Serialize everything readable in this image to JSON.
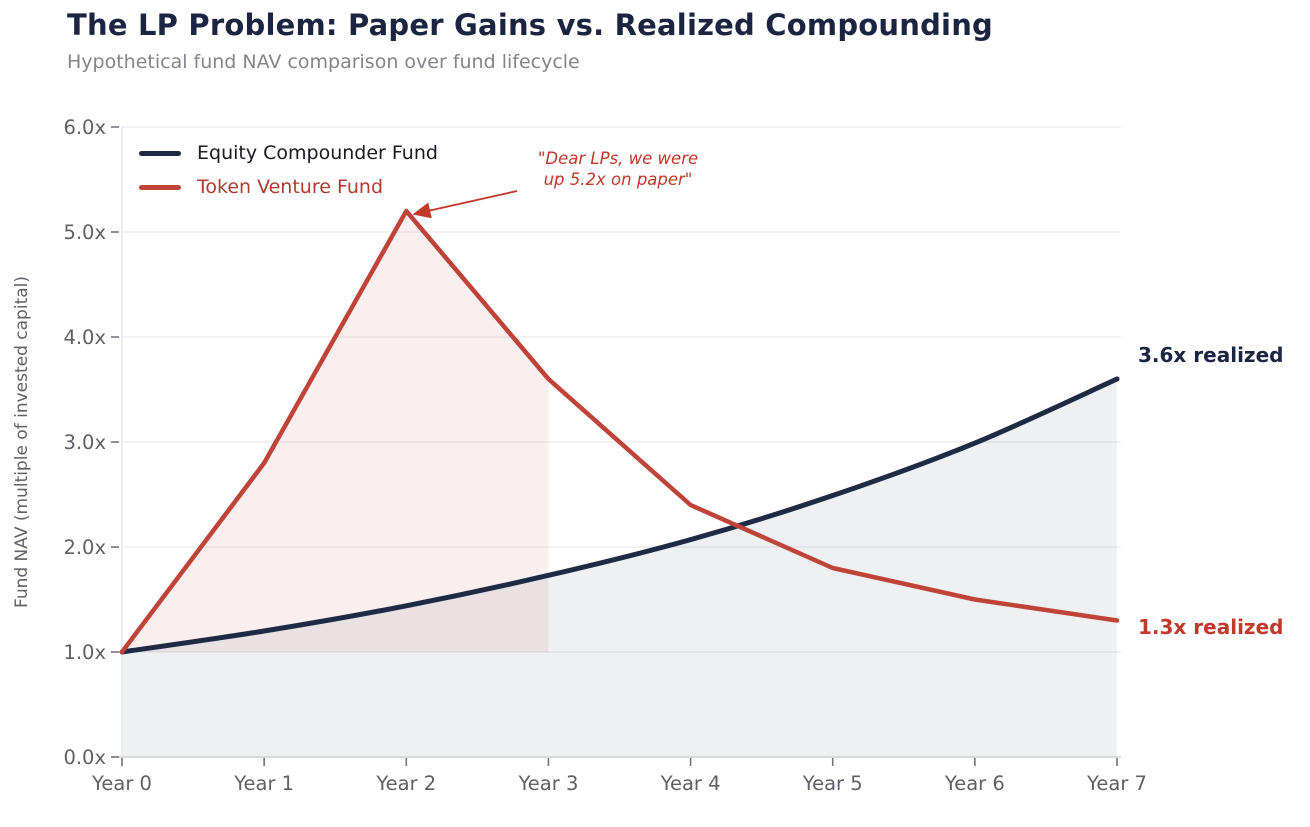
{
  "header": {
    "title": "The LP Problem: Paper Gains vs. Realized Compounding",
    "subtitle": "Hypothetical fund NAV comparison over fund lifecycle"
  },
  "chart_data": {
    "type": "line",
    "title": "The LP Problem: Paper Gains vs. Realized Compounding",
    "subtitle": "Hypothetical fund NAV comparison over fund lifecycle",
    "xlabel": "",
    "ylabel": "Fund NAV (multiple of invested capital)",
    "categories": [
      "Year 0",
      "Year 1",
      "Year 2",
      "Year 3",
      "Year 4",
      "Year 5",
      "Year 6",
      "Year 7"
    ],
    "yticks": [
      "0.0x",
      "1.0x",
      "2.0x",
      "3.0x",
      "4.0x",
      "5.0x",
      "6.0x"
    ],
    "ytick_values": [
      0,
      1,
      2,
      3,
      4,
      5,
      6
    ],
    "ylim": [
      0,
      6
    ],
    "grid": "horizontal",
    "legend_position": "upper-left-inside",
    "series": [
      {
        "name": "Equity Compounder Fund",
        "color": "#1f2a44",
        "label_color": "#1a1a24",
        "values": [
          1.0,
          1.2,
          1.44,
          1.73,
          2.07,
          2.49,
          2.99,
          3.6
        ],
        "smooth": true,
        "fill_baseline": 0.0,
        "fill_x_range": [
          0,
          7
        ],
        "fill_color": "rgba(100,115,135,0.11)"
      },
      {
        "name": "Token Venture Fund",
        "color": "#bf4338",
        "label_color": "#b03a32",
        "values": [
          1.0,
          2.8,
          5.2,
          3.6,
          2.4,
          1.8,
          1.5,
          1.3
        ],
        "smooth": false,
        "fill_baseline": 1.0,
        "fill_x_range": [
          0,
          3
        ],
        "fill_color": "rgba(192,57,43,0.08)"
      }
    ],
    "annotation": {
      "line1": "\"Dear LPs, we were",
      "line2": "up 5.2x on paper\"",
      "color": "#c0392b",
      "points_to": {
        "x": 2,
        "y": 5.2
      }
    },
    "end_labels": [
      {
        "text": "3.6x realized",
        "color": "#1b2440",
        "series": "Equity Compounder Fund"
      },
      {
        "text": "1.3x realized",
        "color": "#c0392b",
        "series": "Token Venture Fund"
      }
    ]
  }
}
